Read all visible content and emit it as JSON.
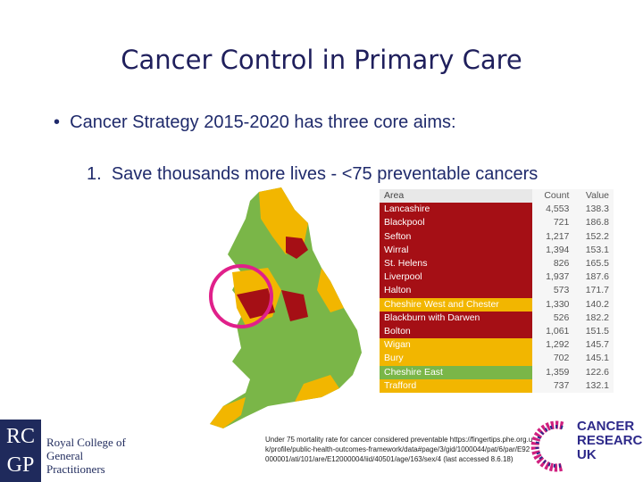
{
  "slide": {
    "title": "Cancer Control in Primary Care",
    "bullet": "Cancer Strategy 2015-2020 has three core aims:",
    "item_number": "1.",
    "item": "Save thousands more lives - <75 preventable cancers",
    "table": {
      "columns": [
        "Area",
        "Count",
        "Value"
      ],
      "rows": [
        {
          "area": "Lancashire",
          "count": "4,553",
          "value": "138.3",
          "color": "#a50f15"
        },
        {
          "area": "Blackpool",
          "count": "721",
          "value": "186.8",
          "color": "#a50f15"
        },
        {
          "area": "Sefton",
          "count": "1,217",
          "value": "152.2",
          "color": "#a50f15"
        },
        {
          "area": "Wirral",
          "count": "1,394",
          "value": "153.1",
          "color": "#a50f15"
        },
        {
          "area": "St. Helens",
          "count": "826",
          "value": "165.5",
          "color": "#a50f15"
        },
        {
          "area": "Liverpool",
          "count": "1,937",
          "value": "187.6",
          "color": "#a50f15"
        },
        {
          "area": "Halton",
          "count": "573",
          "value": "171.7",
          "color": "#a50f15"
        },
        {
          "area": "Cheshire West and Chester",
          "count": "1,330",
          "value": "140.2",
          "color": "#f2b600"
        },
        {
          "area": "Blackburn with Darwen",
          "count": "526",
          "value": "182.2",
          "color": "#a50f15"
        },
        {
          "area": "Bolton",
          "count": "1,061",
          "value": "151.5",
          "color": "#a50f15"
        },
        {
          "area": "Wigan",
          "count": "1,292",
          "value": "145.7",
          "color": "#f2b600"
        },
        {
          "area": "Bury",
          "count": "702",
          "value": "145.1",
          "color": "#f2b600"
        },
        {
          "area": "Cheshire East",
          "count": "1,359",
          "value": "122.6",
          "color": "#7ab648"
        },
        {
          "area": "Trafford",
          "count": "737",
          "value": "132.1",
          "color": "#f2b600"
        }
      ]
    },
    "footnote": "Under 75 mortality rate for cancer considered preventable https://fingertips.phe.org.uk/profile/public-health-outcomes-framework/data#page/3/gid/1000044/pat/6/par/E92000001/ati/101/are/E12000004/iid/40501/age/163/sex/4 (last accessed 8.6.18)",
    "rcgp_letters_top": "RC",
    "rcgp_letters_bottom": "GP",
    "rcgp_name": "Royal College of General Practitioners",
    "cruk_line1": "CANCER",
    "cruk_line2": "RESEARCH",
    "cruk_line3": "UK"
  }
}
